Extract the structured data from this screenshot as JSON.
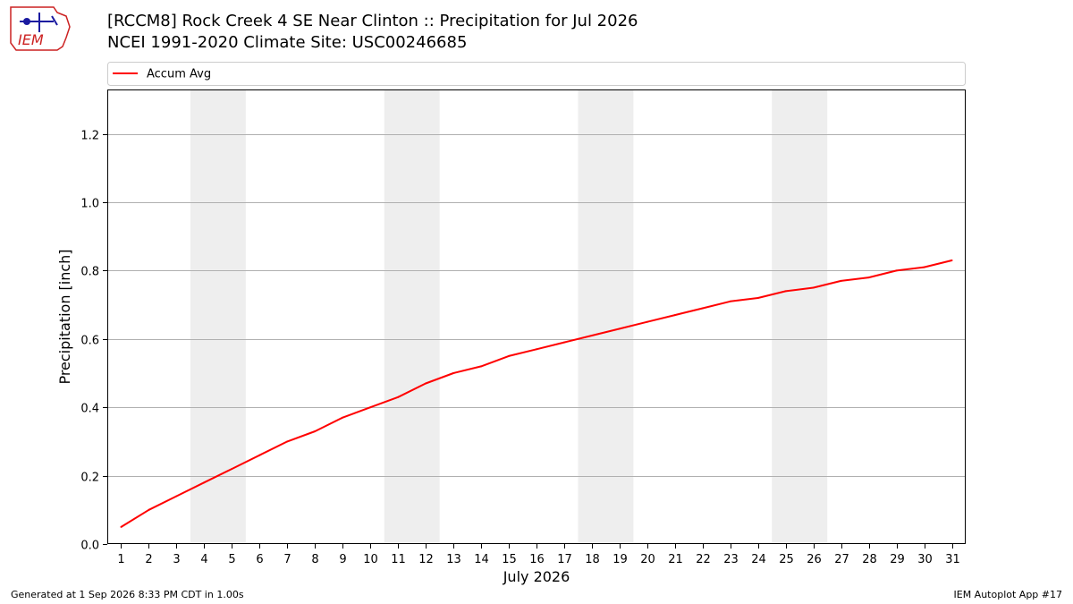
{
  "title_line1": "[RCCM8] Rock Creek 4 SE Near Clinton :: Precipitation for Jul 2026",
  "title_line2": "NCEI 1991-2020 Climate Site: USC00246685",
  "logo_text": "IEM",
  "footer_left": "Generated at 1 Sep 2026 8:33 PM CDT in 1.00s",
  "footer_right": "IEM Autoplot App #17",
  "colors": {
    "line": "#ff0000",
    "weekend_band": "#eeeeee",
    "grid": "#b0b0b0",
    "logo_red": "#cc2222",
    "logo_blue": "#1a1aa0"
  },
  "chart_data": {
    "type": "line",
    "xlabel": "July 2026",
    "ylabel": "Precipitation [inch]",
    "legend": {
      "placement": "top",
      "entries": [
        "Accum Avg"
      ]
    },
    "x": [
      1,
      2,
      3,
      4,
      5,
      6,
      7,
      8,
      9,
      10,
      11,
      12,
      13,
      14,
      15,
      16,
      17,
      18,
      19,
      20,
      21,
      22,
      23,
      24,
      25,
      26,
      27,
      28,
      29,
      30,
      31
    ],
    "xticks": [
      "1",
      "2",
      "3",
      "4",
      "5",
      "6",
      "7",
      "8",
      "9",
      "10",
      "11",
      "12",
      "13",
      "14",
      "15",
      "16",
      "17",
      "18",
      "19",
      "20",
      "21",
      "22",
      "23",
      "24",
      "25",
      "26",
      "27",
      "28",
      "29",
      "30",
      "31"
    ],
    "series": [
      {
        "name": "Accum Avg",
        "color": "#ff0000",
        "values": [
          0.05,
          0.1,
          0.14,
          0.18,
          0.22,
          0.26,
          0.3,
          0.33,
          0.37,
          0.4,
          0.43,
          0.47,
          0.5,
          0.52,
          0.55,
          0.57,
          0.59,
          0.61,
          0.63,
          0.65,
          0.67,
          0.69,
          0.71,
          0.72,
          0.74,
          0.75,
          0.77,
          0.78,
          0.8,
          0.81,
          0.83
        ]
      }
    ],
    "weekend_bands": [
      [
        4,
        5
      ],
      [
        11,
        12
      ],
      [
        18,
        19
      ],
      [
        25,
        26
      ]
    ],
    "xlim": [
      0.5,
      31.5
    ],
    "ylim": [
      0,
      1.33
    ],
    "yticks": [
      0.0,
      0.2,
      0.4,
      0.6,
      0.8,
      1.0,
      1.2
    ],
    "ytick_labels": [
      "0.0",
      "0.2",
      "0.4",
      "0.6",
      "0.8",
      "1.0",
      "1.2"
    ],
    "grid": "horizontal"
  }
}
